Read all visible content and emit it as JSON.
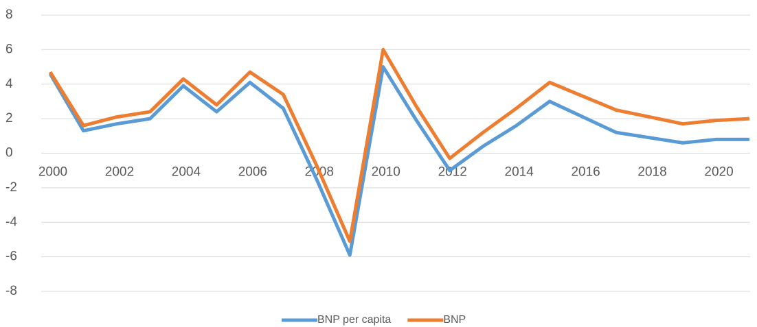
{
  "chart_data": {
    "type": "line",
    "x": [
      2000,
      2001,
      2002,
      2003,
      2004,
      2005,
      2006,
      2007,
      2008,
      2009,
      2010,
      2011,
      2012,
      2013,
      2014,
      2015,
      2016,
      2017,
      2018,
      2019,
      2020,
      2021
    ],
    "series": [
      {
        "name": "BNP per capita",
        "color": "#5b9bd5",
        "values": [
          4.6,
          1.3,
          1.7,
          2.0,
          3.9,
          2.4,
          4.1,
          2.6,
          -1.5,
          -5.9,
          5.0,
          1.9,
          -1.0,
          0.4,
          1.6,
          3.0,
          2.1,
          1.2,
          0.9,
          0.6,
          0.8,
          0.8
        ]
      },
      {
        "name": "BNP",
        "color": "#ed7d31",
        "values": [
          4.7,
          1.6,
          2.1,
          2.4,
          4.3,
          2.8,
          4.7,
          3.4,
          -0.7,
          -5.1,
          6.0,
          2.7,
          -0.3,
          1.2,
          2.6,
          4.1,
          3.3,
          2.5,
          2.1,
          1.7,
          1.9,
          2.0
        ]
      }
    ],
    "xlim": [
      2000,
      2021
    ],
    "xticks": [
      2000,
      2002,
      2004,
      2006,
      2008,
      2010,
      2012,
      2014,
      2016,
      2018,
      2020
    ],
    "ylim": [
      -8,
      8
    ],
    "yticks": [
      -8,
      -6,
      -4,
      -2,
      0,
      2,
      4,
      6,
      8
    ],
    "grid": true,
    "legend": "bottom"
  }
}
